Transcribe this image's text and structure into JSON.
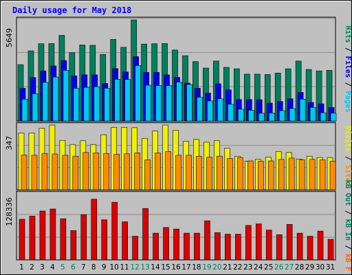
{
  "colors": {
    "background": "#c0c0c0",
    "panel": "#c0c0c0",
    "grid": "#8c8c8c",
    "title": "#0000ff",
    "hits": "#00805c",
    "files": "#0000e6",
    "pages": "#00c8f0",
    "visits": "#f0f000",
    "sites": "#ff8c00",
    "kbin": "#dc0000",
    "kbout": "#00805c",
    "kbf": "#ff6020",
    "weekend_day": "#00805c",
    "weekday": "#000000"
  },
  "chart_data": {
    "type": "bar",
    "title": "Daily usage for May 2018",
    "categories": [
      "1",
      "2",
      "3",
      "4",
      "5",
      "6",
      "7",
      "8",
      "9",
      "10",
      "11",
      "12",
      "13",
      "14",
      "15",
      "16",
      "17",
      "18",
      "19",
      "20",
      "21",
      "22",
      "23",
      "24",
      "25",
      "26",
      "27",
      "28",
      "29",
      "30",
      "31"
    ],
    "weekend_days": [
      "5",
      "6",
      "12",
      "13",
      "19",
      "20",
      "26",
      "27"
    ],
    "panels": [
      {
        "name": "pages_files_hits",
        "ylabel": "Pages / Files / Hits",
        "y_max_label": "5649",
        "ylim": [
          0,
          5649
        ],
        "series": [
          {
            "name": "Hits",
            "values": [
              3150,
              3920,
              4320,
              4330,
              4790,
              3820,
              4250,
              4230,
              3720,
              4560,
              4120,
              5649,
              4300,
              4320,
              4330,
              3970,
              3650,
              3320,
              2960,
              3350,
              3000,
              2920,
              2620,
              2620,
              2600,
              2680,
              2920,
              3350,
              2880,
              2800,
              2830
            ]
          },
          {
            "name": "Files",
            "values": [
              1830,
              2430,
              2800,
              3080,
              3380,
              2520,
              2580,
              2580,
              2100,
              2930,
              2740,
              3600,
              2720,
              2720,
              2580,
              2440,
              2120,
              1830,
              1560,
              2080,
              1740,
              1200,
              1200,
              1190,
              1000,
              1090,
              1240,
              1600,
              1040,
              960,
              760
            ]
          },
          {
            "name": "Pages",
            "values": [
              1220,
              1520,
              2160,
              2460,
              2830,
              1830,
              1880,
              1920,
              1830,
              2330,
              2320,
              3100,
              2000,
              1980,
              1980,
              2180,
              2040,
              1330,
              1120,
              1240,
              940,
              660,
              600,
              440,
              450,
              580,
              700,
              1220,
              760,
              460,
              440
            ]
          }
        ]
      },
      {
        "name": "visits_sites",
        "ylabel": "Visits / Sites",
        "y_max_label": "347",
        "ylim": [
          0,
          347
        ],
        "series": [
          {
            "name": "Visits",
            "values": [
              305,
              305,
              330,
              347,
              265,
              243,
              263,
              243,
              295,
              335,
              335,
              333,
              276,
              315,
              347,
              320,
              260,
              270,
              255,
              263,
              223,
              180,
              153,
              163,
              175,
              205,
              200,
              165,
              180,
              173,
              173
            ]
          },
          {
            "name": "Sites",
            "values": [
              187,
              185,
              195,
              192,
              185,
              180,
              200,
              198,
              195,
              190,
              193,
              198,
              160,
              198,
              205,
              185,
              185,
              180,
              175,
              180,
              168,
              173,
              155,
              153,
              155,
              163,
              170,
              160,
              163,
              160,
              153
            ]
          }
        ]
      },
      {
        "name": "kb",
        "ylabel": "kB F / kB In / kB Out",
        "y_max_label": "128336",
        "ylim": [
          0,
          128336
        ],
        "series": [
          {
            "name": "kB F",
            "values": [
              0,
              0,
              0,
              0,
              0,
              0,
              0,
              0,
              0,
              0,
              0,
              0,
              0,
              0,
              0,
              0,
              0,
              0,
              0,
              0,
              0,
              0,
              0,
              0,
              0,
              0,
              0,
              0,
              0,
              0,
              0
            ]
          },
          {
            "name": "kB In",
            "values": [
              0,
              0,
              0,
              0,
              0,
              0,
              0,
              0,
              0,
              0,
              0,
              0,
              0,
              0,
              0,
              0,
              0,
              0,
              0,
              0,
              0,
              0,
              0,
              0,
              0,
              0,
              0,
              0,
              0,
              0,
              0
            ]
          },
          {
            "name": "kB Out",
            "values": [
              79000,
              85000,
              95000,
              99000,
              80000,
              57000,
              88000,
              118000,
              78000,
              112000,
              74000,
              46000,
              100000,
              52000,
              63000,
              60000,
              52000,
              52000,
              76000,
              53000,
              50000,
              50000,
              67000,
              70000,
              58000,
              49000,
              69000,
              52000,
              46000,
              56000,
              40000
            ]
          }
        ]
      }
    ]
  }
}
